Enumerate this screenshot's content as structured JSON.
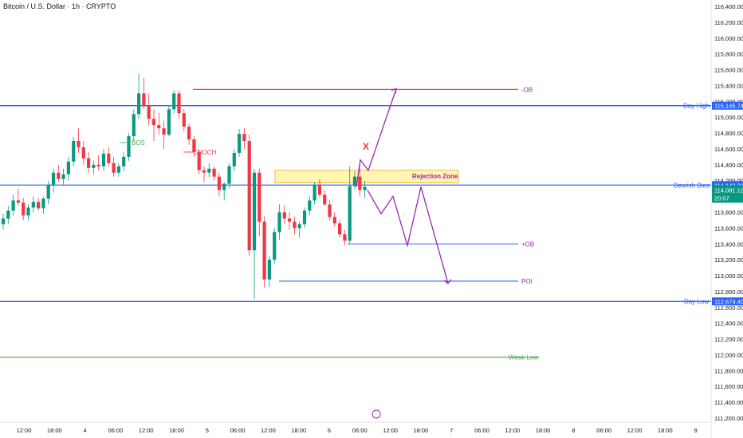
{
  "title": "Bitcoin / U.S. Dollar · 1h · CRYPTO",
  "colors": {
    "up": "#089981",
    "down": "#f23645",
    "blue_line": "#2962ff",
    "red_line": "#f23645",
    "green_line": "#4caf50",
    "purple": "#9c27b0",
    "zone_fill": "#fff59d",
    "zone_stroke": "#f9a825",
    "bos": "#4caf50",
    "choch": "#f23645",
    "axis_text": "#131722"
  },
  "chart_data": {
    "type": "candlestick",
    "ylim": [
      111200,
      116400
    ],
    "y_ticks": [
      "116,400.00",
      "116,200.00",
      "116,000.00",
      "115,800.00",
      "115,600.00",
      "115,400.00",
      "115,200.00",
      "115,000.00",
      "114,800.00",
      "114,600.00",
      "114,400.00",
      "114,200.00",
      "114,000.00",
      "113,800.00",
      "113,600.00",
      "113,400.00",
      "113,200.00",
      "113,000.00",
      "112,800.00",
      "112,600.00",
      "112,400.00",
      "112,200.00",
      "112,000.00",
      "111,800.00",
      "111,600.00",
      "111,400.00",
      "111,200.00"
    ],
    "x_ticks": [
      "12:00",
      "18:00",
      "4",
      "06:00",
      "12:00",
      "18:00",
      "5",
      "06:00",
      "12:00",
      "18:00",
      "6",
      "06:00",
      "12:00",
      "18:00",
      "7",
      "06:00",
      "12:00",
      "18:00",
      "8",
      "06:00",
      "12:00",
      "18:00",
      "9"
    ],
    "candles": [
      [
        113650,
        113780,
        113580,
        113720
      ],
      [
        113720,
        113880,
        113650,
        113820
      ],
      [
        113820,
        114020,
        113760,
        113950
      ],
      [
        113950,
        114100,
        113880,
        113920
      ],
      [
        113920,
        113980,
        113700,
        113760
      ],
      [
        113760,
        113900,
        113700,
        113860
      ],
      [
        113860,
        114000,
        113800,
        113930
      ],
      [
        113930,
        113980,
        113820,
        113850
      ],
      [
        113850,
        114000,
        113780,
        113970
      ],
      [
        113970,
        114200,
        113900,
        114150
      ],
      [
        114150,
        114350,
        114050,
        114300
      ],
      [
        114300,
        114400,
        114180,
        114220
      ],
      [
        114220,
        114350,
        114150,
        114280
      ],
      [
        114280,
        114500,
        114200,
        114440
      ],
      [
        114440,
        114750,
        114380,
        114700
      ],
      [
        114700,
        114860,
        114550,
        114620
      ],
      [
        114620,
        114700,
        114400,
        114480
      ],
      [
        114480,
        114560,
        114300,
        114360
      ],
      [
        114360,
        114450,
        114280,
        114400
      ],
      [
        114400,
        114520,
        114330,
        114380
      ],
      [
        114380,
        114600,
        114320,
        114540
      ],
      [
        114540,
        114620,
        114380,
        114420
      ],
      [
        114420,
        114500,
        114250,
        114300
      ],
      [
        114300,
        114420,
        114250,
        114380
      ],
      [
        114380,
        114560,
        114320,
        114500
      ],
      [
        114500,
        114800,
        114450,
        114760
      ],
      [
        114760,
        115100,
        114700,
        115040
      ],
      [
        115040,
        115550,
        114980,
        115300
      ],
      [
        115300,
        115500,
        115100,
        115150
      ],
      [
        115150,
        115300,
        114900,
        114980
      ],
      [
        114980,
        115100,
        114700,
        114900
      ],
      [
        114900,
        115060,
        114780,
        114860
      ],
      [
        114860,
        114960,
        114600,
        114780
      ],
      [
        114780,
        115150,
        114760,
        115100
      ],
      [
        115100,
        115340,
        115050,
        115300
      ],
      [
        115300,
        115340,
        114980,
        115050
      ],
      [
        115050,
        115100,
        114820,
        114880
      ],
      [
        114880,
        114920,
        114650,
        114720
      ],
      [
        114720,
        114760,
        114500,
        114560
      ],
      [
        114560,
        114600,
        114280,
        114330
      ],
      [
        114330,
        114380,
        114180,
        114300
      ],
      [
        114300,
        114420,
        114240,
        114350
      ],
      [
        114350,
        114380,
        114200,
        114250
      ],
      [
        114250,
        114300,
        114000,
        114080
      ],
      [
        114080,
        114180,
        113950,
        114160
      ],
      [
        114160,
        114420,
        114100,
        114380
      ],
      [
        114380,
        114600,
        114320,
        114550
      ],
      [
        114550,
        114850,
        114500,
        114790
      ],
      [
        114790,
        114860,
        114600,
        114700
      ],
      [
        114700,
        114780,
        113250,
        113320
      ],
      [
        113320,
        114350,
        112700,
        114300
      ],
      [
        114300,
        114350,
        113500,
        113680
      ],
      [
        113680,
        113750,
        112850,
        112950
      ],
      [
        112950,
        113250,
        112850,
        113200
      ],
      [
        113200,
        113600,
        113150,
        113550
      ],
      [
        113550,
        113900,
        113450,
        113800
      ],
      [
        113800,
        113880,
        113650,
        113720
      ],
      [
        113720,
        113800,
        113580,
        113680
      ],
      [
        113680,
        113740,
        113520,
        113600
      ],
      [
        113600,
        113680,
        113480,
        113650
      ],
      [
        113650,
        113860,
        113600,
        113820
      ],
      [
        113820,
        114000,
        113760,
        113950
      ],
      [
        113950,
        114180,
        113900,
        114150
      ],
      [
        114150,
        114220,
        113980,
        114020
      ],
      [
        114020,
        114080,
        113880,
        113900
      ],
      [
        113900,
        113960,
        113700,
        113740
      ],
      [
        113740,
        113800,
        113620,
        113660
      ],
      [
        113660,
        113700,
        113480,
        113520
      ],
      [
        113520,
        113580,
        113380,
        113440
      ],
      [
        113440,
        114380,
        113400,
        114130
      ],
      [
        114130,
        114320,
        114080,
        114250
      ],
      [
        114250,
        114380,
        114000,
        114080
      ],
      [
        114080,
        114200,
        113980,
        114120
      ]
    ],
    "levels": [
      {
        "label": "-OB",
        "value": 115350
      },
      {
        "label": "Day High",
        "value": 115145.74
      },
      {
        "label": "Bearish Bias",
        "value": 114143.21
      },
      {
        "label": "+OB",
        "value": 113400
      },
      {
        "label": "POI",
        "value": 112930
      },
      {
        "label": "Day Low",
        "value": 112674.4
      },
      {
        "label": "Weak Low",
        "value": 111970
      }
    ],
    "zone": {
      "label": "Rejection Zone",
      "top": 114330,
      "bottom": 114170
    },
    "annotations": {
      "bos": "BOS",
      "choch": "CHOCH",
      "x_mark": "X"
    },
    "price_tags": {
      "day_high": "115,145.74",
      "bearish_bias": "114,143.21",
      "current": "114,081.12",
      "countdown": "20:07",
      "day_low": "112,674.40"
    },
    "projection_up": [
      [
        114120,
        0
      ],
      [
        114460,
        0
      ],
      [
        114330,
        0
      ],
      [
        115360,
        0
      ]
    ],
    "projection_down": [
      [
        114080,
        0
      ],
      [
        113780,
        0
      ],
      [
        114000,
        0
      ],
      [
        113380,
        0
      ],
      [
        114120,
        0
      ],
      [
        112900,
        0
      ]
    ]
  }
}
